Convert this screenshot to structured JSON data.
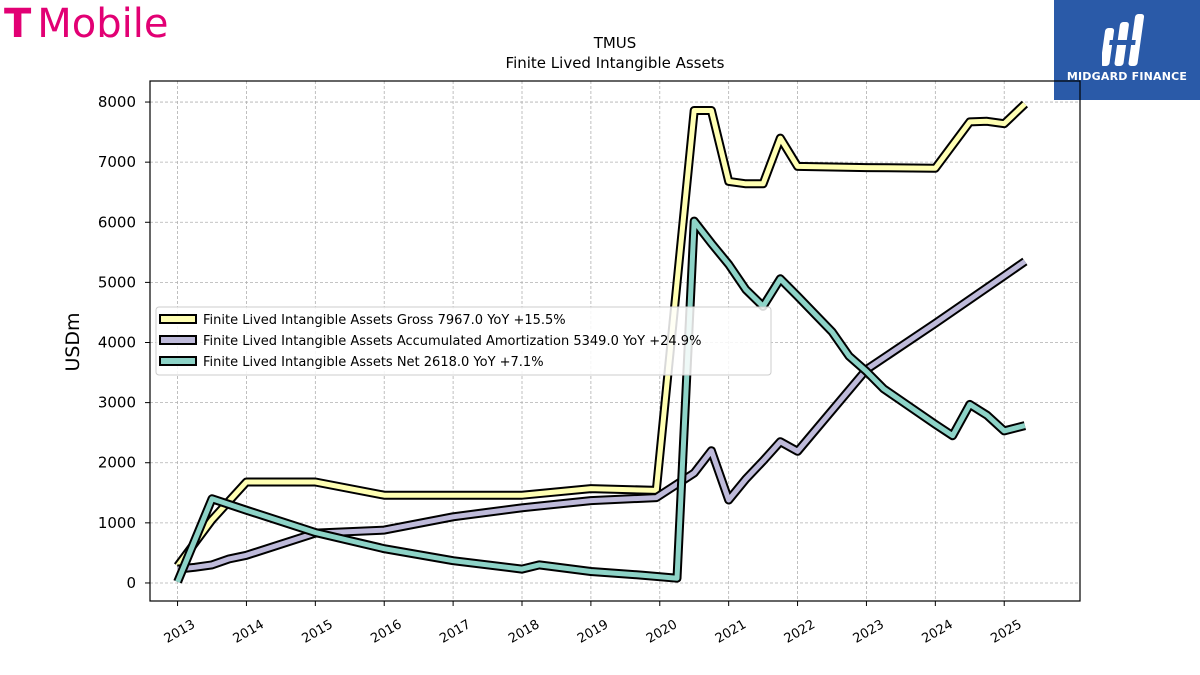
{
  "brand": {
    "left_logo_text": "Mobile",
    "left_logo_glyph": "T",
    "right_logo_text": "MIDGARD FINANCE",
    "left_color": "#e20074",
    "right_color": "#2a5aa8"
  },
  "chart_data": {
    "type": "line",
    "title": "TMUS",
    "subtitle": "Finite Lived Intangible Assets",
    "xlabel": "",
    "ylabel": "USDm",
    "xlim": [
      2012.6,
      2026.1
    ],
    "ylim": [
      -300,
      8350
    ],
    "x_ticks": [
      2013,
      2014,
      2015,
      2016,
      2017,
      2018,
      2019,
      2020,
      2021,
      2022,
      2023,
      2024,
      2025
    ],
    "x_tick_labels": [
      "2013",
      "2014",
      "2015",
      "2016",
      "2017",
      "2018",
      "2019",
      "2020",
      "2021",
      "2022",
      "2023",
      "2024",
      "2025"
    ],
    "y_ticks": [
      0,
      1000,
      2000,
      3000,
      4000,
      5000,
      6000,
      7000,
      8000
    ],
    "y_tick_labels": [
      "0",
      "1000",
      "2000",
      "3000",
      "4000",
      "5000",
      "6000",
      "7000",
      "8000"
    ],
    "grid": true,
    "legend_position": "center-left",
    "series": [
      {
        "name": "Finite Lived Intangible Assets Gross  7967.0 YoY +15.5%",
        "color": "#ffffb3",
        "points": [
          [
            2013.0,
            280
          ],
          [
            2013.5,
            1050
          ],
          [
            2014.0,
            1680
          ],
          [
            2015.0,
            1680
          ],
          [
            2016.0,
            1460
          ],
          [
            2017.0,
            1460
          ],
          [
            2018.0,
            1460
          ],
          [
            2019.0,
            1570
          ],
          [
            2019.95,
            1540
          ],
          [
            2020.5,
            7860
          ],
          [
            2020.75,
            7860
          ],
          [
            2021.0,
            6680
          ],
          [
            2021.25,
            6640
          ],
          [
            2021.5,
            6640
          ],
          [
            2021.75,
            7400
          ],
          [
            2022.0,
            6930
          ],
          [
            2023.0,
            6910
          ],
          [
            2024.0,
            6900
          ],
          [
            2024.5,
            7670
          ],
          [
            2024.75,
            7680
          ],
          [
            2025.0,
            7640
          ],
          [
            2025.3,
            7967
          ]
        ]
      },
      {
        "name": "Finite Lived Intangible Assets Accumulated Amortization  5349.0 YoY +24.9%",
        "color": "#bebada",
        "points": [
          [
            2013.0,
            230
          ],
          [
            2013.25,
            260
          ],
          [
            2013.5,
            300
          ],
          [
            2013.75,
            400
          ],
          [
            2014.0,
            460
          ],
          [
            2015.0,
            830
          ],
          [
            2016.0,
            880
          ],
          [
            2017.0,
            1100
          ],
          [
            2018.0,
            1250
          ],
          [
            2019.0,
            1370
          ],
          [
            2019.95,
            1420
          ],
          [
            2020.5,
            1830
          ],
          [
            2020.75,
            2200
          ],
          [
            2021.0,
            1380
          ],
          [
            2021.25,
            1730
          ],
          [
            2021.5,
            2030
          ],
          [
            2021.75,
            2350
          ],
          [
            2022.0,
            2190
          ],
          [
            2023.0,
            3550
          ],
          [
            2024.0,
            4320
          ],
          [
            2025.0,
            5110
          ],
          [
            2025.3,
            5349
          ]
        ]
      },
      {
        "name": "Finite Lived Intangible Assets Net  2618.0 YoY +7.1%",
        "color": "#8dd3c7",
        "points": [
          [
            2013.0,
            20
          ],
          [
            2013.5,
            1400
          ],
          [
            2014.0,
            1210
          ],
          [
            2015.0,
            840
          ],
          [
            2016.0,
            570
          ],
          [
            2017.0,
            370
          ],
          [
            2018.0,
            230
          ],
          [
            2018.25,
            300
          ],
          [
            2019.0,
            190
          ],
          [
            2019.75,
            130
          ],
          [
            2020.25,
            80
          ],
          [
            2020.5,
            6020
          ],
          [
            2020.75,
            5650
          ],
          [
            2021.0,
            5300
          ],
          [
            2021.25,
            4880
          ],
          [
            2021.5,
            4600
          ],
          [
            2021.75,
            5060
          ],
          [
            2022.0,
            4770
          ],
          [
            2022.5,
            4180
          ],
          [
            2022.75,
            3770
          ],
          [
            2023.0,
            3520
          ],
          [
            2023.25,
            3230
          ],
          [
            2024.0,
            2640
          ],
          [
            2024.25,
            2450
          ],
          [
            2024.5,
            2970
          ],
          [
            2024.75,
            2790
          ],
          [
            2025.0,
            2530
          ],
          [
            2025.3,
            2618
          ]
        ]
      }
    ]
  }
}
